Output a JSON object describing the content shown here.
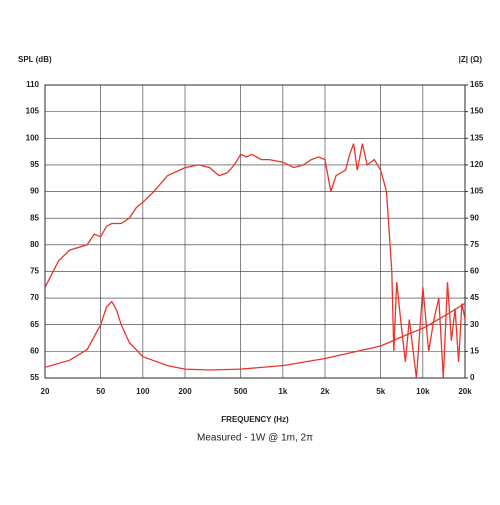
{
  "chart_data": {
    "type": "line",
    "ylabel": "SPL (dB)",
    "y2label": "|Z| (Ω)",
    "xlabel": "FREQUENCY (Hz)",
    "subtitle": "Measured - 1W @ 1m, 2π",
    "log_x": true,
    "grid": true,
    "xlim": [
      20,
      20000
    ],
    "xticks": [
      20,
      50,
      100,
      200,
      500,
      {
        "value": 1000,
        "label": "1k"
      },
      {
        "value": 2000,
        "label": "2k"
      },
      {
        "value": 5000,
        "label": "5k"
      },
      {
        "value": 10000,
        "label": "10k"
      },
      {
        "value": 20000,
        "label": "20k"
      }
    ],
    "ylim": [
      55,
      110
    ],
    "yticks": [
      55,
      60,
      65,
      70,
      75,
      80,
      85,
      90,
      95,
      100,
      105,
      110
    ],
    "y2lim": [
      0,
      165
    ],
    "y2ticks": [
      0,
      15,
      30,
      45,
      60,
      75,
      90,
      105,
      120,
      135,
      150,
      165
    ],
    "series": [
      {
        "color": "#e8352b",
        "x": [
          20,
          25,
          30,
          40,
          45,
          50,
          55,
          60,
          70,
          80,
          90,
          100,
          120,
          150,
          200,
          250,
          300,
          350,
          400,
          450,
          500,
          550,
          600,
          700,
          800,
          1000,
          1200,
          1400,
          1600,
          1800,
          2000,
          2200,
          2400,
          2800,
          3000,
          3200,
          3400,
          3700,
          4000,
          4500,
          5000,
          5500,
          6000,
          6200,
          6500,
          7000,
          7500,
          8000,
          9000,
          10000,
          11000,
          12000,
          13000,
          14000,
          15000,
          16000,
          17000,
          18000,
          19000,
          20000
        ],
        "values": [
          72,
          77,
          79,
          80,
          82,
          81.5,
          83.5,
          84,
          84,
          85,
          87,
          88,
          90,
          93,
          94.5,
          95,
          94.5,
          93,
          93.5,
          95,
          97,
          96.5,
          97,
          96,
          96,
          95.5,
          94.5,
          95,
          96,
          96.5,
          96,
          90,
          93,
          94,
          97,
          99,
          94,
          99,
          95,
          96,
          94,
          90,
          75,
          60,
          73,
          65,
          58,
          66,
          55,
          72,
          60,
          66,
          70,
          55,
          73,
          62,
          68,
          58,
          69,
          66
        ]
      },
      {
        "color": "#e8352b",
        "axis": "y2",
        "x": [
          20,
          30,
          40,
          50,
          55,
          60,
          65,
          70,
          80,
          100,
          150,
          200,
          300,
          500,
          1000,
          2000,
          5000,
          8000,
          10000,
          15000,
          20000
        ],
        "values": [
          6,
          10,
          16,
          30,
          40,
          43,
          38,
          30,
          20,
          12,
          7,
          5,
          4.5,
          5,
          7,
          11,
          18,
          25,
          28,
          36,
          42
        ]
      }
    ]
  }
}
